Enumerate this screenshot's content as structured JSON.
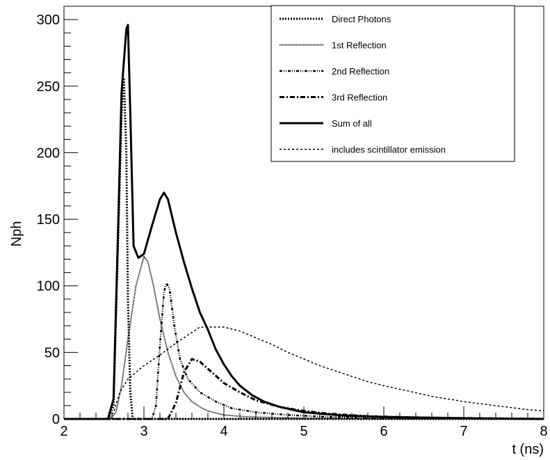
{
  "chart_data": {
    "type": "line",
    "xlabel": "t (ns)",
    "ylabel": "Nph",
    "xlim": [
      2,
      8
    ],
    "ylim": [
      0,
      310
    ],
    "x_ticks": [
      "2",
      "3",
      "4",
      "5",
      "6",
      "7",
      "8"
    ],
    "y_ticks": [
      "0",
      "50",
      "100",
      "150",
      "200",
      "250",
      "300"
    ],
    "legend_position": "top-right",
    "grid": false,
    "series": [
      {
        "name": "Direct Photons",
        "style": "direct",
        "points": [
          [
            2,
            0
          ],
          [
            2.55,
            0
          ],
          [
            2.62,
            10
          ],
          [
            2.68,
            140
          ],
          [
            2.72,
            230
          ],
          [
            2.75,
            255
          ],
          [
            2.78,
            200
          ],
          [
            2.8,
            90
          ],
          [
            2.83,
            20
          ],
          [
            2.86,
            0
          ],
          [
            8,
            0
          ]
        ]
      },
      {
        "name": "1st Reflection",
        "style": "first",
        "points": [
          [
            2,
            0
          ],
          [
            2.58,
            0
          ],
          [
            2.65,
            5
          ],
          [
            2.72,
            25
          ],
          [
            2.8,
            60
          ],
          [
            2.9,
            100
          ],
          [
            3.0,
            122
          ],
          [
            3.05,
            118
          ],
          [
            3.12,
            100
          ],
          [
            3.2,
            75
          ],
          [
            3.3,
            50
          ],
          [
            3.4,
            32
          ],
          [
            3.5,
            20
          ],
          [
            3.6,
            13
          ],
          [
            3.7,
            9
          ],
          [
            3.8,
            6
          ],
          [
            4.0,
            3
          ],
          [
            4.3,
            1.5
          ],
          [
            5,
            0.5
          ],
          [
            6,
            0
          ],
          [
            8,
            0
          ]
        ]
      },
      {
        "name": "2nd Reflection",
        "style": "second",
        "points": [
          [
            2,
            0
          ],
          [
            3.1,
            0
          ],
          [
            3.15,
            10
          ],
          [
            3.2,
            55
          ],
          [
            3.25,
            95
          ],
          [
            3.28,
            102
          ],
          [
            3.32,
            98
          ],
          [
            3.38,
            70
          ],
          [
            3.45,
            45
          ],
          [
            3.55,
            30
          ],
          [
            3.7,
            20
          ],
          [
            3.9,
            13
          ],
          [
            4.1,
            8
          ],
          [
            4.4,
            5
          ],
          [
            4.8,
            3
          ],
          [
            5.3,
            1.5
          ],
          [
            6,
            0.5
          ],
          [
            8,
            0
          ]
        ]
      },
      {
        "name": "3rd Reflection",
        "style": "third",
        "points": [
          [
            2,
            0
          ],
          [
            3.3,
            0
          ],
          [
            3.4,
            12
          ],
          [
            3.5,
            35
          ],
          [
            3.6,
            45
          ],
          [
            3.7,
            43
          ],
          [
            3.85,
            35
          ],
          [
            4.0,
            27
          ],
          [
            4.2,
            20
          ],
          [
            4.4,
            14
          ],
          [
            4.7,
            9
          ],
          [
            5.0,
            6
          ],
          [
            5.3,
            4
          ],
          [
            5.8,
            2
          ],
          [
            6.5,
            1
          ],
          [
            8,
            0
          ]
        ]
      },
      {
        "name": "Sum of all",
        "style": "sum",
        "points": [
          [
            2,
            0
          ],
          [
            2.55,
            0
          ],
          [
            2.62,
            15
          ],
          [
            2.68,
            150
          ],
          [
            2.72,
            245
          ],
          [
            2.78,
            293
          ],
          [
            2.8,
            296
          ],
          [
            2.83,
            230
          ],
          [
            2.87,
            130
          ],
          [
            2.93,
            121
          ],
          [
            3.0,
            124
          ],
          [
            3.1,
            145
          ],
          [
            3.2,
            165
          ],
          [
            3.25,
            170
          ],
          [
            3.3,
            165
          ],
          [
            3.4,
            140
          ],
          [
            3.5,
            118
          ],
          [
            3.6,
            98
          ],
          [
            3.7,
            80
          ],
          [
            3.8,
            67
          ],
          [
            3.9,
            52
          ],
          [
            4.0,
            41
          ],
          [
            4.1,
            32
          ],
          [
            4.2,
            25
          ],
          [
            4.35,
            18
          ],
          [
            4.5,
            13
          ],
          [
            4.7,
            9
          ],
          [
            5.0,
            5
          ],
          [
            5.5,
            2.5
          ],
          [
            6,
            1.5
          ],
          [
            7,
            0.5
          ],
          [
            8,
            0
          ]
        ]
      },
      {
        "name": "includes scintillator emission",
        "style": "scint",
        "points": [
          [
            2,
            0
          ],
          [
            2.55,
            0
          ],
          [
            2.62,
            5
          ],
          [
            2.7,
            20
          ],
          [
            2.8,
            30
          ],
          [
            2.9,
            35
          ],
          [
            3.0,
            40
          ],
          [
            3.2,
            48
          ],
          [
            3.4,
            57
          ],
          [
            3.6,
            65
          ],
          [
            3.7,
            69
          ],
          [
            4.0,
            69
          ],
          [
            4.2,
            66
          ],
          [
            4.4,
            61
          ],
          [
            4.6,
            56
          ],
          [
            4.8,
            50
          ],
          [
            5.0,
            45
          ],
          [
            5.2,
            40
          ],
          [
            5.4,
            36
          ],
          [
            5.6,
            32
          ],
          [
            5.8,
            28
          ],
          [
            6.0,
            25
          ],
          [
            6.3,
            21
          ],
          [
            6.6,
            17
          ],
          [
            7.0,
            13
          ],
          [
            7.4,
            10
          ],
          [
            7.8,
            7
          ],
          [
            8,
            6
          ]
        ]
      }
    ]
  }
}
